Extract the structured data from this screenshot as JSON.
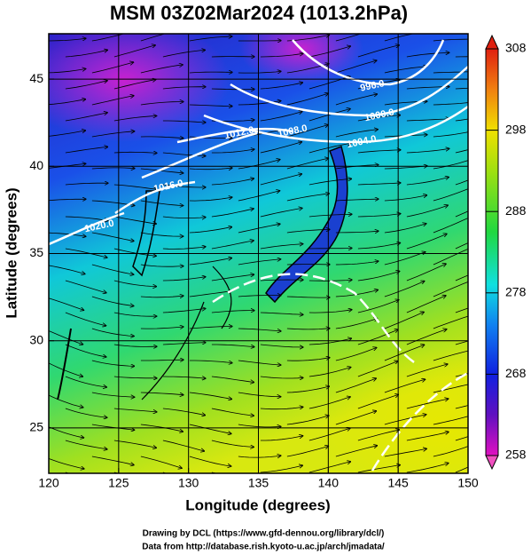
{
  "title": "MSM 03Z02Mar2024 (1013.2hPa)",
  "x_axis": {
    "label": "Longitude (degrees)",
    "range": [
      120,
      150
    ],
    "ticks": [
      120,
      125,
      130,
      135,
      140,
      145,
      150
    ]
  },
  "y_axis": {
    "label": "Latitude  (degrees)",
    "range": [
      22.4,
      47.6
    ],
    "ticks": [
      25,
      30,
      35,
      40,
      45
    ]
  },
  "colorbar": {
    "range": [
      258,
      308
    ],
    "ticks": [
      258,
      268,
      278,
      288,
      298,
      308
    ]
  },
  "contour_labels": [
    "996.0",
    "1000.0",
    "1004.0",
    "1008.0",
    "1012.0",
    "1016.0",
    "1020.0"
  ],
  "credits": [
    "Drawing by DCL (https://www.gfd-dennou.org/library/dcl/)",
    "Data from http://database.rish.kyoto-u.ac.jp/arch/jmadata/"
  ]
}
